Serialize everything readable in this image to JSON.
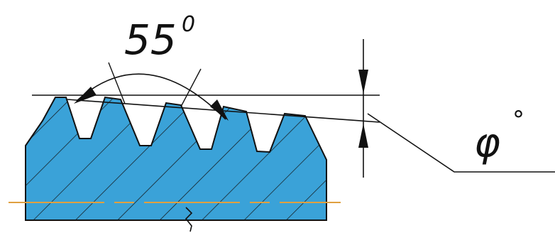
{
  "labels": {
    "angle_value": "55",
    "angle_degree": "0",
    "taper_symbol": "φ",
    "taper_degree": "°"
  },
  "colors": {
    "part_fill": "#3aa2d8",
    "outline": "#111111",
    "axis_line": "#e0a040",
    "background": "#ffffff"
  }
}
